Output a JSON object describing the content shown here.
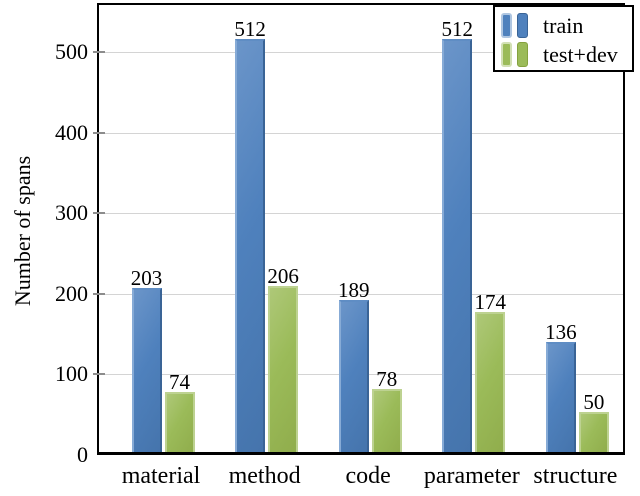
{
  "chart_data": {
    "type": "bar",
    "title": "",
    "xlabel": "",
    "ylabel": "Number of spans",
    "categories": [
      "material",
      "method",
      "code",
      "parameter",
      "structure"
    ],
    "series": [
      {
        "name": "train",
        "color": "#4f81bd",
        "color_light": "#87abd6",
        "color_dark": "#3a6496",
        "values": [
          203,
          512,
          189,
          512,
          136
        ]
      },
      {
        "name": "test+dev",
        "color": "#9bbb59",
        "color_light": "#bdd291",
        "color_dark": "#85a23f",
        "values": [
          74,
          206,
          78,
          174,
          50
        ]
      }
    ],
    "yticks": [
      0,
      100,
      200,
      300,
      400,
      500
    ],
    "ylim": [
      0,
      561
    ],
    "grid": "horizontal-light-gray",
    "gridline_color": "#d4d4d4",
    "frame_color": "#000000",
    "bar_value_labels_shown": true,
    "legend_position": "top-right",
    "legend_entries": [
      "train",
      "test+dev"
    ]
  }
}
